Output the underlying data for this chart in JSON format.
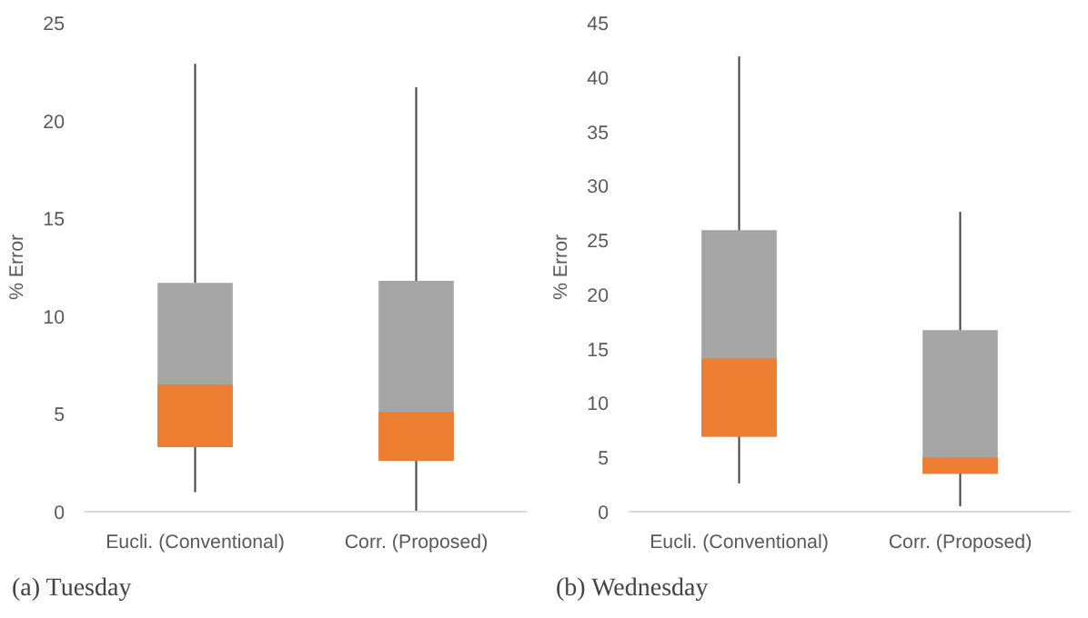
{
  "chart_data": [
    {
      "type": "box",
      "title": "(a) Tuesday",
      "ylabel": "% Error",
      "categories": [
        "Eucli. (Conventional)",
        "Corr. (Proposed)"
      ],
      "colors": [
        "#ed7d31",
        "#a5a5a5"
      ],
      "ylim": [
        0,
        25
      ],
      "yticks": [
        0,
        5,
        10,
        15,
        20,
        25
      ],
      "grid": false,
      "boxes": [
        {
          "low": 1.0,
          "q1": 3.3,
          "median": 6.5,
          "q3": 11.7,
          "high": 22.9
        },
        {
          "low": 0,
          "q1": 2.6,
          "median": 5.1,
          "q3": 11.8,
          "high": 21.7
        }
      ]
    },
    {
      "type": "box",
      "title": "(b) Wednesday",
      "ylabel": "% Error",
      "categories": [
        "Eucli. (Conventional)",
        "Corr. (Proposed)"
      ],
      "colors": [
        "#ed7d31",
        "#a5a5a5"
      ],
      "ylim": [
        0,
        45
      ],
      "yticks": [
        0,
        5,
        10,
        15,
        20,
        25,
        30,
        35,
        40,
        45
      ],
      "grid": false,
      "boxes": [
        {
          "low": 2.6,
          "q1": 6.9,
          "median": 14.1,
          "q3": 25.9,
          "high": 41.9
        },
        {
          "low": 0.5,
          "q1": 3.5,
          "median": 5.0,
          "q3": 16.7,
          "high": 27.6
        }
      ]
    }
  ]
}
